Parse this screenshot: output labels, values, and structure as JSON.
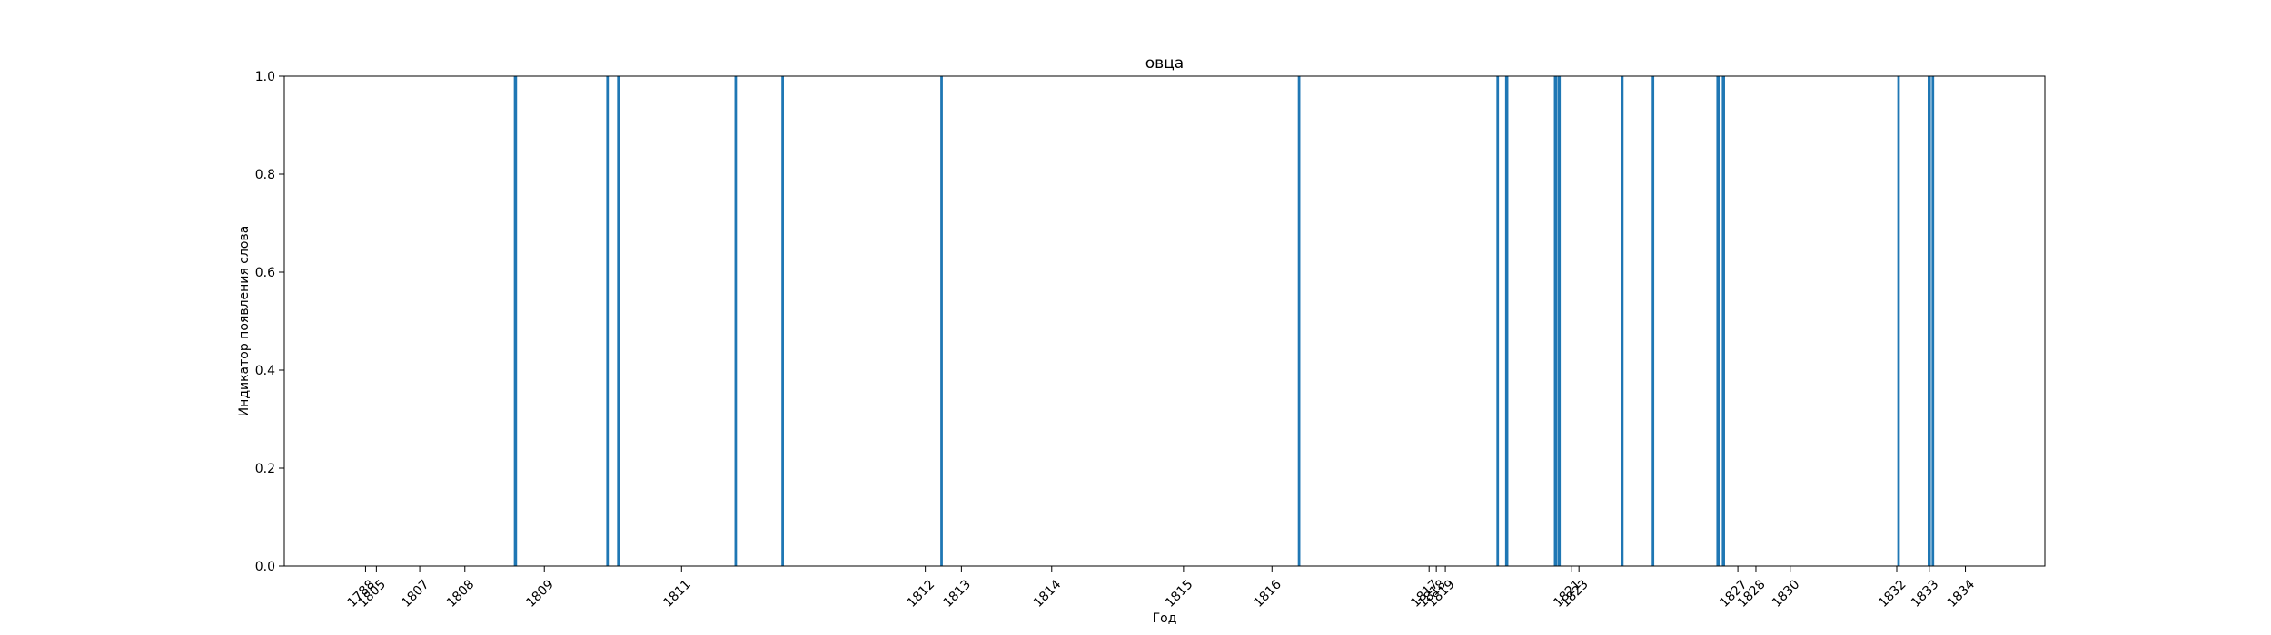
{
  "chart_data": {
    "type": "bar",
    "title": "овца",
    "xlabel": "Год",
    "ylabel": "Индикатор появления слова",
    "ylim": [
      0,
      1
    ],
    "y_ticks": [
      "0.0",
      "0.2",
      "0.4",
      "0.6",
      "0.8",
      "1.0"
    ],
    "x_ticks": [
      {
        "label": "1788",
        "pos": 0.0
      },
      {
        "label": "1805",
        "pos": 0.6
      },
      {
        "label": "1807",
        "pos": 3.0
      },
      {
        "label": "1808",
        "pos": 5.5
      },
      {
        "label": "1809",
        "pos": 9.9
      },
      {
        "label": "1811",
        "pos": 17.5
      },
      {
        "label": "1812",
        "pos": 31.0
      },
      {
        "label": "1813",
        "pos": 33.0
      },
      {
        "label": "1814",
        "pos": 38.0
      },
      {
        "label": "1815",
        "pos": 45.3
      },
      {
        "label": "1816",
        "pos": 50.2
      },
      {
        "label": "1817",
        "pos": 58.9
      },
      {
        "label": "1818",
        "pos": 59.3
      },
      {
        "label": "1819",
        "pos": 59.8
      },
      {
        "label": "1821",
        "pos": 66.8
      },
      {
        "label": "1823",
        "pos": 67.2
      },
      {
        "label": "1827",
        "pos": 76.0
      },
      {
        "label": "1828",
        "pos": 77.0
      },
      {
        "label": "1830",
        "pos": 78.9
      },
      {
        "label": "1832",
        "pos": 84.8
      },
      {
        "label": "1833",
        "pos": 86.6
      },
      {
        "label": "1834",
        "pos": 88.6
      }
    ],
    "x_range": [
      -4.5,
      93.0
    ],
    "bars": [
      {
        "x": 8.3,
        "value": 1,
        "width": 0.18
      },
      {
        "x": 13.4,
        "value": 1,
        "width": 0.14
      },
      {
        "x": 14.0,
        "value": 1,
        "width": 0.14
      },
      {
        "x": 20.5,
        "value": 1,
        "width": 0.14
      },
      {
        "x": 23.1,
        "value": 1,
        "width": 0.14
      },
      {
        "x": 31.9,
        "value": 1,
        "width": 0.14
      },
      {
        "x": 51.7,
        "value": 1,
        "width": 0.14
      },
      {
        "x": 62.7,
        "value": 1,
        "width": 0.14
      },
      {
        "x": 63.2,
        "value": 1,
        "width": 0.18
      },
      {
        "x": 65.9,
        "value": 1,
        "width": 0.18
      },
      {
        "x": 66.1,
        "value": 1,
        "width": 0.18
      },
      {
        "x": 69.6,
        "value": 1,
        "width": 0.14
      },
      {
        "x": 71.3,
        "value": 1,
        "width": 0.14
      },
      {
        "x": 74.9,
        "value": 1,
        "width": 0.18
      },
      {
        "x": 75.2,
        "value": 1,
        "width": 0.18
      },
      {
        "x": 84.9,
        "value": 1,
        "width": 0.14
      },
      {
        "x": 86.6,
        "value": 1,
        "width": 0.18
      },
      {
        "x": 86.8,
        "value": 1,
        "width": 0.14
      }
    ],
    "bar_color": "#1f77b4",
    "grid": false,
    "legend": "none"
  }
}
